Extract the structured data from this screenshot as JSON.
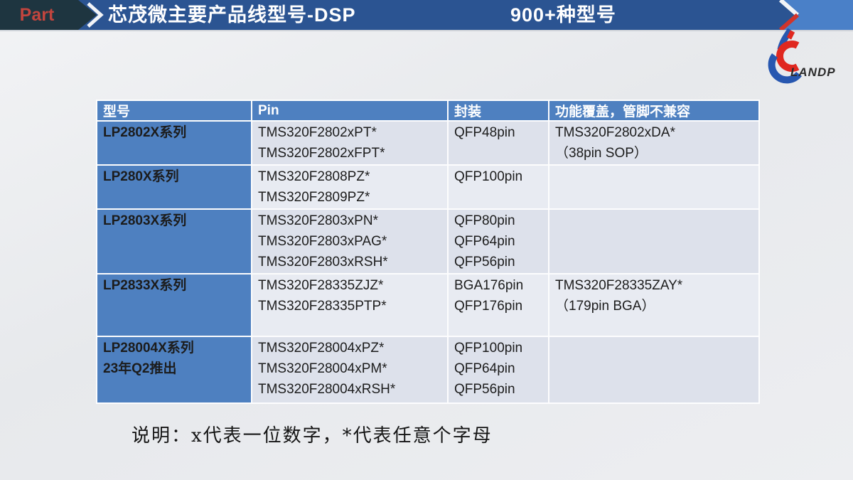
{
  "header": {
    "part_label": "Part",
    "title": "芯茂微主要产品线型号-DSP",
    "badge": "900+种型号",
    "logo_text": "LANDP"
  },
  "table": {
    "headers": [
      "型号",
      "Pin",
      "封装",
      "功能覆盖，管脚不兼容"
    ],
    "rows": [
      {
        "model": "LP2802X系列",
        "pins": [
          "TMS320F2802xPT*",
          "TMS320F2802xFPT*"
        ],
        "packages": [
          "QFP48pin"
        ],
        "coverage": [
          "TMS320F2802xDA*",
          "（38pin SOP）"
        ]
      },
      {
        "model": "LP280X系列",
        "pins": [
          "TMS320F2808PZ*",
          "TMS320F2809PZ*"
        ],
        "packages": [
          "QFP100pin"
        ],
        "coverage": []
      },
      {
        "model": "LP2803X系列",
        "pins": [
          "TMS320F2803xPN*",
          "TMS320F2803xPAG*",
          "TMS320F2803xRSH*"
        ],
        "packages": [
          "QFP80pin",
          "QFP64pin",
          "QFP56pin"
        ],
        "coverage": []
      },
      {
        "model": "LP2833X系列",
        "pins": [
          "TMS320F28335ZJZ*",
          "TMS320F28335PTP*"
        ],
        "packages": [
          "BGA176pin",
          "QFP176pin"
        ],
        "coverage": [
          "TMS320F28335ZAY*",
          "（179pin BGA）"
        ]
      },
      {
        "model": "LP28004X系列",
        "model_note": "23年Q2推出",
        "pins": [
          "TMS320F28004xPZ*",
          "TMS320F28004xPM*",
          "TMS320F28004xRSH*"
        ],
        "packages": [
          "QFP100pin",
          "QFP64pin",
          "QFP56pin"
        ],
        "coverage": []
      }
    ]
  },
  "footer": {
    "note": "说明：x代表一位数字，*代表任意个字母"
  },
  "colors": {
    "bar_blue": "#2b5492",
    "dark_slate": "#1e3540",
    "part_red": "#c2453e",
    "corner_blue": "#4a80c8",
    "accent_red": "#d2342a",
    "header_blue": "#4e80c0",
    "row_odd": "#dde1eb",
    "row_even": "#e8ebf2",
    "logo_blue": "#2757b0",
    "logo_red": "#e02820"
  }
}
